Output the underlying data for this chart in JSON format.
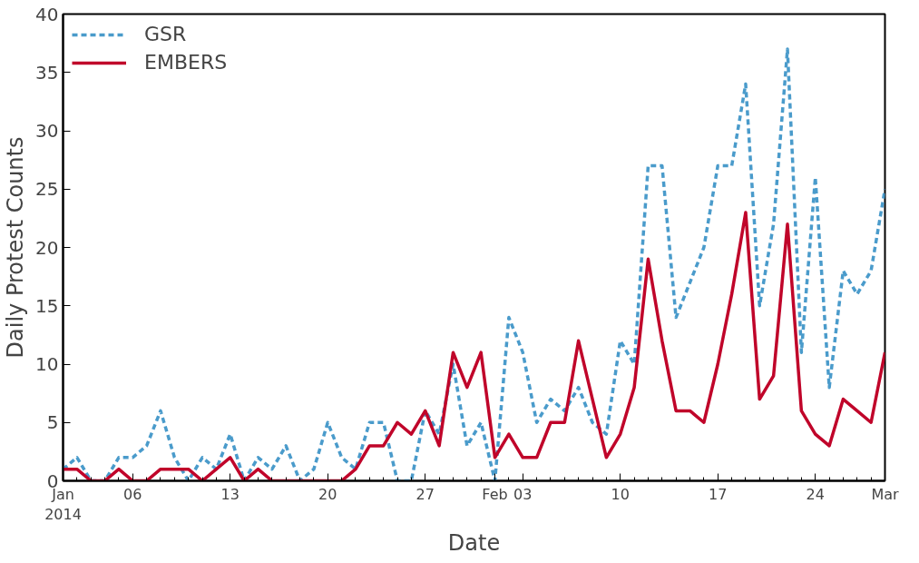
{
  "chart_data": {
    "type": "line",
    "xlabel": "Date",
    "ylabel": "Daily Protest Counts",
    "x": [
      "2014-01-01",
      "2014-01-02",
      "2014-01-03",
      "2014-01-04",
      "2014-01-05",
      "2014-01-06",
      "2014-01-07",
      "2014-01-08",
      "2014-01-09",
      "2014-01-10",
      "2014-01-11",
      "2014-01-12",
      "2014-01-13",
      "2014-01-14",
      "2014-01-15",
      "2014-01-16",
      "2014-01-17",
      "2014-01-18",
      "2014-01-19",
      "2014-01-20",
      "2014-01-21",
      "2014-01-22",
      "2014-01-23",
      "2014-01-24",
      "2014-01-25",
      "2014-01-26",
      "2014-01-27",
      "2014-01-28",
      "2014-01-29",
      "2014-01-30",
      "2014-01-31",
      "2014-02-01",
      "2014-02-02",
      "2014-02-03",
      "2014-02-04",
      "2014-02-05",
      "2014-02-06",
      "2014-02-07",
      "2014-02-08",
      "2014-02-09",
      "2014-02-10",
      "2014-02-11",
      "2014-02-12",
      "2014-02-13",
      "2014-02-14",
      "2014-02-15",
      "2014-02-16",
      "2014-02-17",
      "2014-02-18",
      "2014-02-19",
      "2014-02-20",
      "2014-02-21",
      "2014-02-22",
      "2014-02-23",
      "2014-02-24",
      "2014-02-25",
      "2014-02-26",
      "2014-02-27",
      "2014-02-28",
      "2014-03-01"
    ],
    "series": [
      {
        "name": "GSR",
        "color": "#4a9bcb",
        "line_style": "dashed",
        "values": [
          1,
          2,
          0,
          0,
          2,
          2,
          3,
          6,
          2,
          0,
          2,
          1,
          4,
          0,
          2,
          1,
          3,
          0,
          1,
          5,
          2,
          1,
          5,
          5,
          0,
          0,
          6,
          4,
          10,
          3,
          5,
          0,
          14,
          11,
          5,
          7,
          6,
          8,
          5,
          4,
          12,
          10,
          27,
          27,
          14,
          17,
          20,
          27,
          27,
          34,
          15,
          22,
          37,
          11,
          26,
          8,
          18,
          16,
          18,
          25
        ]
      },
      {
        "name": "EMBERS",
        "color": "#c0052a",
        "line_style": "solid",
        "values": [
          1,
          1,
          0,
          0,
          1,
          0,
          0,
          1,
          1,
          1,
          0,
          1,
          2,
          0,
          1,
          0,
          null,
          null,
          null,
          null,
          0,
          1,
          3,
          3,
          5,
          4,
          6,
          3,
          11,
          8,
          11,
          2,
          4,
          2,
          2,
          5,
          5,
          12,
          7,
          2,
          4,
          8,
          19,
          12,
          6,
          6,
          5,
          10,
          16,
          23,
          7,
          9,
          22,
          6,
          4,
          3,
          7,
          6,
          5,
          11
        ]
      }
    ],
    "xlim": [
      "2014-01-01",
      "2014-03-01"
    ],
    "xticks": [
      {
        "value": "2014-01-01",
        "label": "Jan\n2014"
      },
      {
        "value": "2014-01-06",
        "label": "06"
      },
      {
        "value": "2014-01-13",
        "label": "13"
      },
      {
        "value": "2014-01-20",
        "label": "20"
      },
      {
        "value": "2014-01-27",
        "label": "27"
      },
      {
        "value": "2014-02-01",
        "label": "Feb"
      },
      {
        "value": "2014-02-03",
        "label": "03"
      },
      {
        "value": "2014-02-10",
        "label": "10"
      },
      {
        "value": "2014-02-17",
        "label": "17"
      },
      {
        "value": "2014-02-24",
        "label": "24"
      },
      {
        "value": "2014-03-01",
        "label": "Mar"
      }
    ],
    "ylim": [
      0,
      40
    ],
    "yticks": [
      0,
      5,
      10,
      15,
      20,
      25,
      30,
      35,
      40
    ],
    "grid": false,
    "legend": "top left"
  }
}
